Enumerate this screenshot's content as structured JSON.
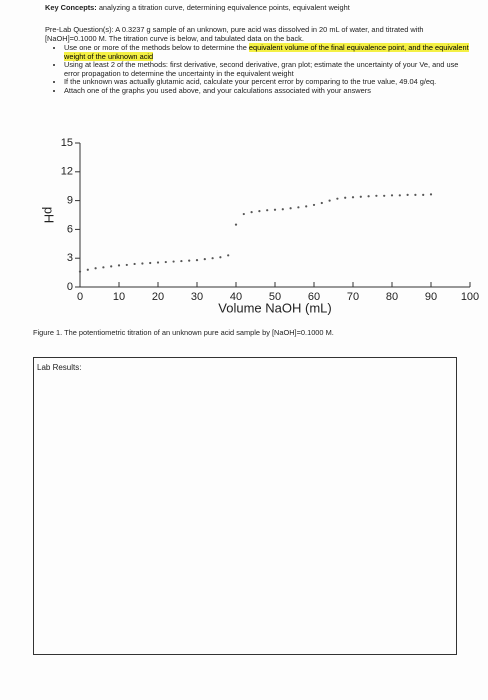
{
  "header": {
    "label": "Key Concepts:",
    "text": "analyzing a titration curve, determining equivalence points, equivalent weight"
  },
  "prelab": {
    "label": "Pre-Lab Question(s):",
    "text": "A 0.3237 g sample of an unknown, pure acid was dissolved in 20 mL of water, and titrated with [NaOH]=0.1000 M. The titration curve is below, and tabulated data on the back.",
    "bullets": [
      {
        "text": "Use one or more of the methods below to determine the ",
        "highlight": "equivalent volume of the final equivalence point, and the equivalent weight of the unknown acid"
      },
      {
        "text": "Using at least 2 of the methods: first derivative, second derivative, gran plot; estimate the uncertainty of your Ve, and use error propagation to determine the uncertainty in the equivalent weight"
      },
      {
        "text": "If the unknown was actually glutamic acid, calculate your percent error by comparing to the true value, 49.04 g/eq."
      },
      {
        "text": "Attach one of the graphs you used above, and your calculations associated with your answers"
      }
    ]
  },
  "chart_data": {
    "type": "scatter",
    "x_label": "Volume NaOH (mL)",
    "y_label": "pH",
    "color": "#555555",
    "x": [
      0,
      2,
      4,
      6,
      8,
      10,
      12,
      14,
      16,
      18,
      20,
      22,
      24,
      26,
      28,
      30,
      32,
      34,
      36,
      38,
      40,
      42,
      44,
      46,
      48,
      50,
      52,
      54,
      56,
      58,
      60,
      62,
      64,
      66,
      68,
      70,
      72,
      74,
      76,
      78,
      80,
      82,
      84,
      86,
      88,
      90
    ],
    "values": [
      1.6,
      1.8,
      1.95,
      2.05,
      2.15,
      2.25,
      2.3,
      2.4,
      2.45,
      2.5,
      2.55,
      2.6,
      2.65,
      2.7,
      2.75,
      2.8,
      2.9,
      3.0,
      3.1,
      3.3,
      6.5,
      7.6,
      7.8,
      7.9,
      8.0,
      8.05,
      8.1,
      8.2,
      8.3,
      8.4,
      8.55,
      8.75,
      9.0,
      9.2,
      9.3,
      9.35,
      9.4,
      9.45,
      9.5,
      9.5,
      9.55,
      9.55,
      9.6,
      9.6,
      9.6,
      9.65
    ],
    "xlim": [
      0,
      100
    ],
    "xticks": [
      0,
      10,
      20,
      30,
      40,
      50,
      60,
      70,
      80,
      90,
      100
    ],
    "ylim": [
      0,
      15
    ],
    "yticks": [
      0,
      3,
      6,
      9,
      12,
      15
    ]
  },
  "caption": "Figure 1. The potentiometric titration of an unknown pure acid sample by [NaOH]=0.1000 M.",
  "lab_results": "Lab Results:"
}
